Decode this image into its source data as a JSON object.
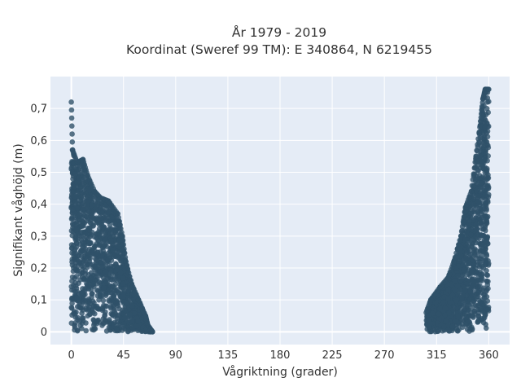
{
  "chart_data": {
    "type": "scatter",
    "title": "År 1979 - 2019",
    "subtitle": "Koordinat (Sweref 99 TM): E 340864, N 6219455",
    "xlabel": "Vågriktning (grader)",
    "ylabel": "Signifikant våghöjd (m)",
    "xlim": [
      -18,
      378
    ],
    "ylim": [
      -0.04,
      0.8
    ],
    "xticks": [
      0,
      45,
      90,
      135,
      180,
      225,
      270,
      315,
      360
    ],
    "xtick_labels": [
      "0",
      "45",
      "90",
      "135",
      "180",
      "225",
      "270",
      "315",
      "360"
    ],
    "yticks": [
      0,
      0.1,
      0.2,
      0.3,
      0.4,
      0.5,
      0.6,
      0.7
    ],
    "ytick_labels": [
      "0",
      "0,1",
      "0,2",
      "0,3",
      "0,4",
      "0,5",
      "0,6",
      "0,7"
    ],
    "grid": true,
    "background": "#e5ecf6",
    "marker_color": "#2f5169",
    "series": [
      {
        "envelope": [
          {
            "x": 0,
            "y": 0.72
          },
          {
            "x": 1,
            "y": 0.57
          },
          {
            "x": 5,
            "y": 0.53
          },
          {
            "x": 10,
            "y": 0.54
          },
          {
            "x": 14,
            "y": 0.49
          },
          {
            "x": 20,
            "y": 0.44
          },
          {
            "x": 25,
            "y": 0.42
          },
          {
            "x": 32,
            "y": 0.41
          },
          {
            "x": 40,
            "y": 0.37
          },
          {
            "x": 44,
            "y": 0.3
          },
          {
            "x": 47,
            "y": 0.22
          },
          {
            "x": 52,
            "y": 0.15
          },
          {
            "x": 58,
            "y": 0.1
          },
          {
            "x": 64,
            "y": 0.05
          },
          {
            "x": 66,
            "y": 0.02
          },
          {
            "x": 70,
            "y": 0.0
          }
        ]
      },
      {
        "envelope": [
          {
            "x": 306,
            "y": 0.06
          },
          {
            "x": 310,
            "y": 0.1
          },
          {
            "x": 318,
            "y": 0.14
          },
          {
            "x": 325,
            "y": 0.17
          },
          {
            "x": 330,
            "y": 0.22
          },
          {
            "x": 336,
            "y": 0.3
          },
          {
            "x": 340,
            "y": 0.39
          },
          {
            "x": 345,
            "y": 0.44
          },
          {
            "x": 349,
            "y": 0.55
          },
          {
            "x": 353,
            "y": 0.66
          },
          {
            "x": 355,
            "y": 0.73
          },
          {
            "x": 357,
            "y": 0.76
          },
          {
            "x": 360,
            "y": 0.76
          }
        ]
      }
    ]
  }
}
